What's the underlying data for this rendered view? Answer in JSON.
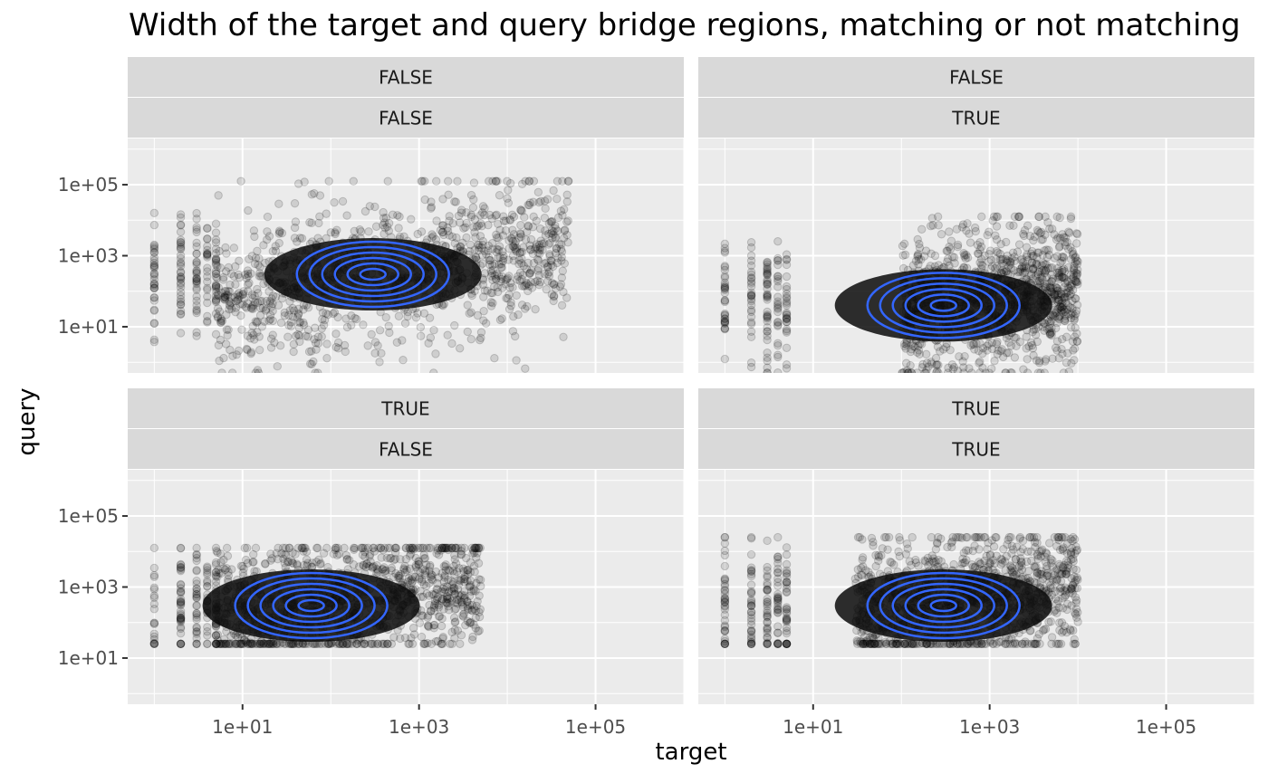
{
  "chart_data": {
    "type": "scatter",
    "title": "Width of the target and query bridge regions, matching or not matching",
    "xlabel": "target",
    "ylabel": "query",
    "x_scale": "log10",
    "y_scale": "log10",
    "xlim": [
      0.5,
      1000000
    ],
    "ylim": [
      0.5,
      2000000
    ],
    "x_ticks": [
      {
        "value": 10,
        "label": "1e+01"
      },
      {
        "value": 1000,
        "label": "1e+03"
      },
      {
        "value": 100000,
        "label": "1e+05"
      }
    ],
    "y_ticks": [
      {
        "value": 10,
        "label": "1e+01"
      },
      {
        "value": 1000,
        "label": "1e+03"
      },
      {
        "value": 100000,
        "label": "1e+05"
      }
    ],
    "point_color": "#000000",
    "contour_color": "#3366FF",
    "panel_background": "#EBEBEB",
    "strip_background": "#D9D9D9",
    "grid": true,
    "panels": [
      {
        "strip_top": "FALSE",
        "strip_bottom": "FALSE",
        "density_center": {
          "x": 300,
          "y": 300
        },
        "cloud": {
          "x_range": [
            5,
            50000
          ],
          "y_range": [
            1,
            50000
          ]
        }
      },
      {
        "strip_top": "FALSE",
        "strip_bottom": "TRUE",
        "density_center": {
          "x": 300,
          "y": 40
        },
        "cloud": {
          "x_range": [
            100,
            10000
          ],
          "y_range": [
            1,
            5000
          ]
        }
      },
      {
        "strip_top": "TRUE",
        "strip_bottom": "FALSE",
        "density_center": {
          "x": 60,
          "y": 300
        },
        "cloud": {
          "x_range": [
            5,
            5000
          ],
          "y_range": [
            50,
            5000
          ]
        }
      },
      {
        "strip_top": "TRUE",
        "strip_bottom": "TRUE",
        "density_center": {
          "x": 300,
          "y": 300
        },
        "cloud": {
          "x_range": [
            30,
            10000
          ],
          "y_range": [
            50,
            10000
          ]
        }
      }
    ]
  }
}
